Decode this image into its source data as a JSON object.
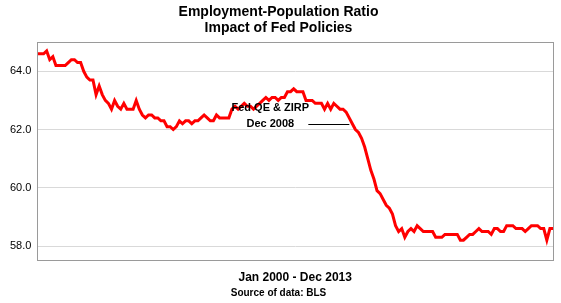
{
  "chart_data": {
    "type": "line",
    "title": [
      "Employment-Population Ratio",
      "Impact of Fed Policies"
    ],
    "x_label": "Jan 2000 - Dec 2013",
    "source": "Source of data: BLS",
    "annotation": [
      "Fed QE & ZIRP",
      "Dec 2008"
    ],
    "categories": [
      null,
      null,
      null,
      null,
      null,
      null,
      null,
      null,
      null,
      null,
      null,
      null,
      null,
      null,
      null,
      null,
      null,
      null,
      null,
      null,
      null,
      null,
      null,
      null,
      null,
      null,
      null,
      null,
      null,
      null,
      null,
      null,
      null,
      null,
      null,
      null,
      null,
      null,
      null,
      null,
      null,
      null,
      null,
      null,
      null,
      null,
      null,
      null,
      null,
      null,
      null,
      null,
      null,
      null,
      null,
      null,
      null,
      null,
      null,
      null,
      null,
      null,
      null,
      null,
      null,
      null,
      null,
      null,
      null,
      null,
      null,
      null,
      null,
      null,
      null,
      null,
      null,
      null,
      null,
      null,
      null,
      null,
      null,
      null,
      null,
      null,
      null,
      null,
      null,
      null,
      null,
      null,
      null,
      null,
      null,
      null,
      null,
      null,
      null,
      null,
      null,
      null,
      null,
      null,
      null,
      null,
      null,
      null,
      null,
      null,
      null,
      null,
      null,
      null,
      null,
      null,
      null,
      null,
      null,
      null,
      null,
      null,
      null,
      null,
      null,
      null,
      null,
      null,
      null,
      null,
      null,
      null,
      null,
      null,
      null,
      null,
      null,
      null,
      null,
      null,
      null,
      null,
      null,
      null,
      null,
      null,
      null,
      null,
      null,
      null,
      null,
      null,
      null,
      null,
      null,
      null,
      null,
      null,
      null,
      null,
      null,
      null,
      null,
      null,
      null,
      null,
      null,
      null
    ],
    "values": [
      64.6,
      64.6,
      64.6,
      64.7,
      64.4,
      64.5,
      64.2,
      64.2,
      64.2,
      64.2,
      64.3,
      64.4,
      64.4,
      64.3,
      64.3,
      64.0,
      63.8,
      63.7,
      63.7,
      63.2,
      63.5,
      63.2,
      63.0,
      62.9,
      62.7,
      63.0,
      62.8,
      62.7,
      62.9,
      62.7,
      62.7,
      62.7,
      63.0,
      62.7,
      62.5,
      62.4,
      62.5,
      62.5,
      62.4,
      62.4,
      62.3,
      62.3,
      62.1,
      62.1,
      62.0,
      62.1,
      62.3,
      62.2,
      62.3,
      62.3,
      62.2,
      62.3,
      62.3,
      62.4,
      62.5,
      62.4,
      62.3,
      62.3,
      62.5,
      62.4,
      62.4,
      62.4,
      62.4,
      62.7,
      62.8,
      62.7,
      62.8,
      62.9,
      62.8,
      62.8,
      62.7,
      62.8,
      62.9,
      63.0,
      63.1,
      63.0,
      63.1,
      63.1,
      63.0,
      63.1,
      63.1,
      63.3,
      63.3,
      63.4,
      63.3,
      63.3,
      63.3,
      63.0,
      63.0,
      63.0,
      62.9,
      62.9,
      62.9,
      62.7,
      62.9,
      62.7,
      62.9,
      62.8,
      62.7,
      62.7,
      62.6,
      62.4,
      62.2,
      62.0,
      61.9,
      61.7,
      61.4,
      61.0,
      60.6,
      60.3,
      59.9,
      59.8,
      59.6,
      59.4,
      59.3,
      59.1,
      58.7,
      58.5,
      58.6,
      58.3,
      58.5,
      58.6,
      58.5,
      58.7,
      58.6,
      58.5,
      58.5,
      58.5,
      58.5,
      58.3,
      58.3,
      58.3,
      58.4,
      58.4,
      58.4,
      58.4,
      58.4,
      58.2,
      58.2,
      58.3,
      58.4,
      58.4,
      58.5,
      58.6,
      58.5,
      58.5,
      58.5,
      58.4,
      58.6,
      58.6,
      58.5,
      58.5,
      58.7,
      58.7,
      58.7,
      58.6,
      58.6,
      58.6,
      58.5,
      58.6,
      58.7,
      58.7,
      58.7,
      58.6,
      58.6,
      58.2,
      58.6,
      58.6
    ],
    "color": "#ff0000",
    "ylim": [
      57.5,
      65
    ],
    "yticks": [
      {
        "value": 58,
        "label": "58.0"
      },
      {
        "value": 60,
        "label": "60.0"
      },
      {
        "value": 62,
        "label": "62.0"
      },
      {
        "value": 64,
        "label": "64.0"
      }
    ],
    "grid": true,
    "tick_labels": "y"
  }
}
